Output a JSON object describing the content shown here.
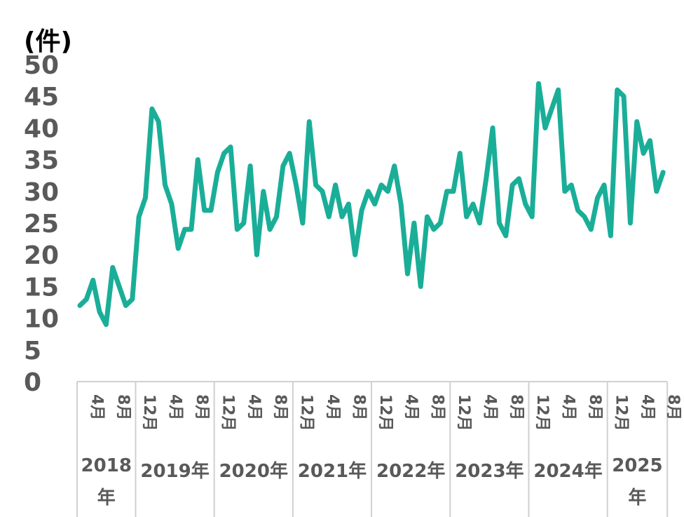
{
  "chart_data": {
    "type": "line",
    "unit_label": "(件)",
    "ylim": [
      0,
      50
    ],
    "y_ticks": [
      "0",
      "5",
      "10",
      "15",
      "20",
      "25",
      "30",
      "35",
      "40",
      "45",
      "50"
    ],
    "grid": false,
    "legend": "none",
    "colors": {
      "line": "#1aae98",
      "axis": "#d0d0d0",
      "text": "#595959"
    },
    "x_start": "2018-03",
    "tick_labels": [
      {
        "month": "2018-04",
        "label": "4月"
      },
      {
        "month": "2018-08",
        "label": "8月"
      },
      {
        "month": "2018-12",
        "label": "12月"
      },
      {
        "month": "2019-04",
        "label": "4月"
      },
      {
        "month": "2019-08",
        "label": "8月"
      },
      {
        "month": "2019-12",
        "label": "12月"
      },
      {
        "month": "2020-04",
        "label": "4月"
      },
      {
        "month": "2020-08",
        "label": "8月"
      },
      {
        "month": "2020-12",
        "label": "12月"
      },
      {
        "month": "2021-04",
        "label": "4月"
      },
      {
        "month": "2021-08",
        "label": "8月"
      },
      {
        "month": "2021-12",
        "label": "12月"
      },
      {
        "month": "2022-04",
        "label": "4月"
      },
      {
        "month": "2022-08",
        "label": "8月"
      },
      {
        "month": "2022-12",
        "label": "12月"
      },
      {
        "month": "2023-04",
        "label": "4月"
      },
      {
        "month": "2023-08",
        "label": "8月"
      },
      {
        "month": "2023-12",
        "label": "12月"
      },
      {
        "month": "2024-04",
        "label": "4月"
      },
      {
        "month": "2024-08",
        "label": "8月"
      },
      {
        "month": "2024-12",
        "label": "12月"
      },
      {
        "month": "2025-04",
        "label": "4月"
      },
      {
        "month": "2025-08",
        "label": "8月"
      }
    ],
    "years": [
      {
        "label": "2018年",
        "from": "2018-03",
        "to": "2018-11",
        "wrap": true
      },
      {
        "label": "2019年",
        "from": "2018-12",
        "to": "2019-11",
        "wrap": false
      },
      {
        "label": "2020年",
        "from": "2019-12",
        "to": "2020-11",
        "wrap": false
      },
      {
        "label": "2021年",
        "from": "2020-12",
        "to": "2021-11",
        "wrap": false
      },
      {
        "label": "2022年",
        "from": "2021-12",
        "to": "2022-11",
        "wrap": false
      },
      {
        "label": "2023年",
        "from": "2022-12",
        "to": "2023-11",
        "wrap": false
      },
      {
        "label": "2024年",
        "from": "2023-12",
        "to": "2024-11",
        "wrap": false
      },
      {
        "label": "2025年",
        "from": "2024-12",
        "to": "2025-08",
        "wrap": true
      }
    ],
    "series": [
      {
        "values": [
          12,
          13,
          16,
          11,
          9,
          18,
          15,
          12,
          13,
          26,
          29,
          43,
          41,
          31,
          28,
          21,
          24,
          24,
          35,
          27,
          27,
          33,
          36,
          37,
          24,
          25,
          34,
          20,
          30,
          24,
          26,
          34,
          36,
          31,
          25,
          41,
          31,
          30,
          26,
          31,
          26,
          28,
          20,
          27,
          30,
          28,
          31,
          30,
          34,
          28,
          17,
          25,
          15,
          26,
          24,
          25,
          30,
          30,
          36,
          26,
          28,
          25,
          32,
          40,
          25,
          23,
          31,
          32,
          28,
          26,
          47,
          40,
          43,
          46,
          30,
          31,
          27,
          26,
          24,
          29,
          31,
          23,
          46,
          45,
          25,
          41,
          36,
          38,
          30,
          33
        ]
      }
    ]
  }
}
